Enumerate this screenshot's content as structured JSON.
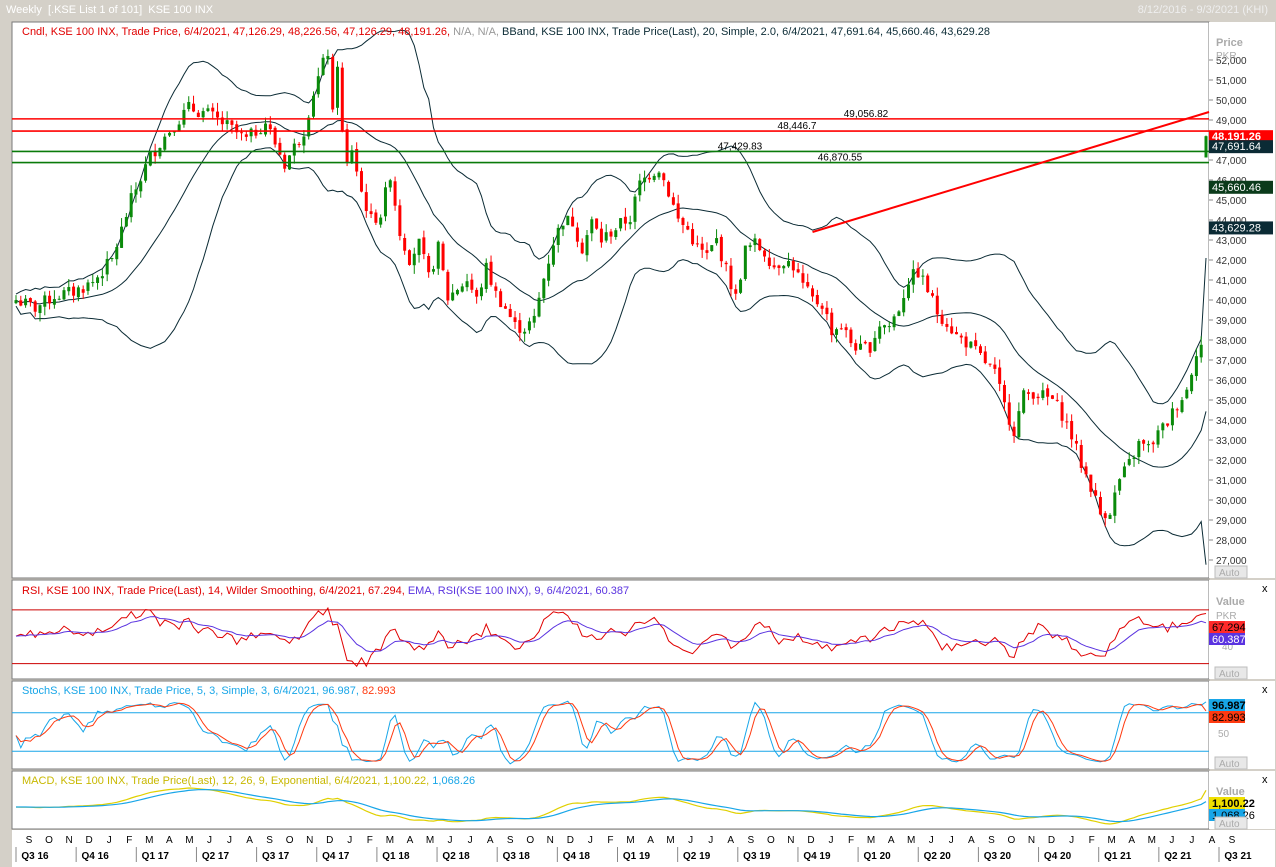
{
  "window": {
    "title": "Weekly  [.KSE List 1 of 101]  KSE 100 INX",
    "date_range": "8/12/2016 - 9/3/2021 (KHI)"
  },
  "colors": {
    "up": "#0a8a0a",
    "down": "#ff0000",
    "band": "#0b2b35",
    "rsi": "#e00000",
    "rsi_ema": "#5a33e0",
    "stoch_k": "#18a6e8",
    "stoch_d": "#ff3a10",
    "macd": "#e0d000",
    "macd_signal": "#18a6e8"
  },
  "main_panel": {
    "legend_candle": "Cndl, KSE 100 INX, Trade Price, 6/4/2021, 47,126.29, 48,226.56, 47,126.29, 48,191.26,",
    "legend_na": " N/A, N/A,",
    "legend_bband": " BBand, KSE 100 INX, Trade Price(Last),  20, Simple, 2.0, 6/4/2021, 47,691.64, 45,660.46, 43,629.28",
    "axis_title_1": "Price",
    "axis_title_2": "PKR",
    "auto_label": "Auto",
    "hline_labels": [
      "49,056.82",
      "48,446.7",
      "47,429.83",
      "46,870.55"
    ],
    "badges": [
      "48,191.26",
      "47,691.64",
      "45,660.46",
      "43,629.28"
    ]
  },
  "rsi_panel": {
    "legend_a": "RSI, KSE 100 INX, Trade Price(Last),  14, Wilder Smoothing, 6/4/2021, 67.294,",
    "legend_b": " EMA, RSI(KSE 100 INX),  9, 6/4/2021, 60.387",
    "axis_title_1": "Value",
    "axis_title_2": "PKR",
    "tick": "40",
    "badges": [
      "67.294",
      "60.387"
    ],
    "auto_label": "Auto",
    "close_label": "x"
  },
  "stoch_panel": {
    "legend_a": "StochS, KSE 100 INX, Trade Price,  5, 3, Simple, 3, 6/4/2021, 96.987,",
    "legend_b": " 82.993",
    "tick_50": "50",
    "tick_0": "0",
    "badges": [
      "96.987",
      "82.993"
    ],
    "auto_label": "Auto",
    "close_label": "x"
  },
  "macd_panel": {
    "legend_a": "MACD, KSE 100 INX, Trade Price(Last),  12, 26, 9, Exponential, 6/4/2021, 1,100.22,",
    "legend_b": " 1,068.26",
    "axis_title": "Value",
    "badges": [
      "1,100.22",
      "1,068.26"
    ],
    "auto_label": "Auto",
    "close_label": "x"
  },
  "chart_data": [
    {
      "type": "candlestick",
      "title": "KSE 100 INX Weekly",
      "ylabel": "Price PKR",
      "ylim": [
        26200,
        53800
      ],
      "y_ticks": [
        27000,
        28000,
        29000,
        30000,
        31000,
        32000,
        33000,
        34000,
        35000,
        36000,
        37000,
        38000,
        39000,
        40000,
        41000,
        42000,
        43000,
        44000,
        45000,
        46000,
        47000,
        48000,
        49000,
        50000,
        51000,
        52000
      ],
      "y_tick_labels": [
        "27,000",
        "28,000",
        "29,000",
        "30,000",
        "31,000",
        "32,000",
        "33,000",
        "34,000",
        "35,000",
        "36,000",
        "37,000",
        "38,000",
        "39,000",
        "40,000",
        "41,000",
        "42,000",
        "43,000",
        "44,000",
        "45,000",
        "46,000",
        "47,000",
        "48,000",
        "49,000",
        "50,000",
        "51,000",
        "52,000"
      ],
      "month_labels": [
        "S",
        "O",
        "N",
        "D",
        "J",
        "F",
        "M",
        "A",
        "M",
        "J",
        "J",
        "A",
        "S",
        "O",
        "N",
        "D",
        "J",
        "F",
        "M",
        "A",
        "M",
        "J",
        "J",
        "A",
        "S",
        "O",
        "N",
        "D",
        "J",
        "F",
        "M",
        "A",
        "M",
        "J",
        "J",
        "A",
        "S",
        "O",
        "N",
        "D",
        "J",
        "F",
        "M",
        "A",
        "M",
        "J",
        "J",
        "A",
        "S",
        "O",
        "N",
        "D",
        "J",
        "F",
        "M",
        "A",
        "M",
        "J",
        "J",
        "A",
        "S"
      ],
      "quarter_labels": [
        "Q3 16",
        "Q4 16",
        "Q1 17",
        "Q2 17",
        "Q3 17",
        "Q4 17",
        "Q1 18",
        "Q2 18",
        "Q3 18",
        "Q4 18",
        "Q1 19",
        "Q2 19",
        "Q3 19",
        "Q4 19",
        "Q1 20",
        "Q2 20",
        "Q3 20",
        "Q4 20",
        "Q1 21",
        "Q2 21",
        "Q3 21"
      ],
      "weeks": 248,
      "close_path": [
        [
          0,
          40000
        ],
        [
          4,
          39600
        ],
        [
          8,
          40200
        ],
        [
          12,
          40400
        ],
        [
          16,
          40900
        ],
        [
          20,
          42000
        ],
        [
          24,
          45000
        ],
        [
          28,
          47200
        ],
        [
          32,
          48500
        ],
        [
          36,
          49600
        ],
        [
          40,
          49300
        ],
        [
          44,
          48700
        ],
        [
          48,
          48000
        ],
        [
          52,
          48900
        ],
        [
          56,
          46800
        ],
        [
          60,
          48500
        ],
        [
          62,
          50400
        ],
        [
          64,
          51800
        ],
        [
          65,
          52400
        ],
        [
          66,
          49200
        ],
        [
          67,
          51900
        ],
        [
          68,
          48300
        ],
        [
          69,
          46700
        ],
        [
          70,
          47600
        ],
        [
          72,
          45400
        ],
        [
          74,
          44000
        ],
        [
          76,
          44300
        ],
        [
          78,
          46300
        ],
        [
          80,
          43400
        ],
        [
          82,
          42100
        ],
        [
          84,
          42800
        ],
        [
          86,
          41100
        ],
        [
          88,
          42600
        ],
        [
          90,
          40100
        ],
        [
          92,
          40600
        ],
        [
          94,
          41000
        ],
        [
          96,
          40000
        ],
        [
          98,
          41600
        ],
        [
          100,
          40300
        ],
        [
          102,
          39600
        ],
        [
          104,
          38700
        ],
        [
          106,
          38600
        ],
        [
          108,
          39000
        ],
        [
          110,
          41100
        ],
        [
          112,
          42900
        ],
        [
          114,
          44000
        ],
        [
          116,
          43900
        ],
        [
          118,
          42600
        ],
        [
          120,
          43900
        ],
        [
          122,
          43000
        ],
        [
          124,
          43400
        ],
        [
          126,
          43800
        ],
        [
          128,
          44100
        ],
        [
          130,
          45800
        ],
        [
          132,
          46300
        ],
        [
          134,
          46600
        ],
        [
          136,
          45400
        ],
        [
          138,
          44000
        ],
        [
          140,
          43500
        ],
        [
          142,
          42600
        ],
        [
          144,
          42200
        ],
        [
          146,
          43000
        ],
        [
          148,
          41500
        ],
        [
          150,
          40100
        ],
        [
          152,
          42500
        ],
        [
          154,
          42800
        ],
        [
          156,
          42400
        ],
        [
          158,
          41700
        ],
        [
          160,
          42000
        ],
        [
          162,
          41700
        ],
        [
          164,
          40700
        ],
        [
          166,
          40000
        ],
        [
          168,
          39800
        ],
        [
          170,
          38500
        ],
        [
          172,
          38700
        ],
        [
          174,
          37900
        ],
        [
          176,
          37500
        ],
        [
          178,
          37700
        ],
        [
          180,
          38800
        ],
        [
          182,
          38700
        ],
        [
          184,
          39600
        ],
        [
          186,
          41000
        ],
        [
          188,
          41400
        ],
        [
          190,
          40500
        ],
        [
          192,
          39400
        ],
        [
          194,
          38900
        ],
        [
          196,
          38200
        ],
        [
          198,
          37900
        ],
        [
          200,
          37400
        ],
        [
          202,
          36900
        ],
        [
          204,
          36300
        ],
        [
          206,
          34700
        ],
        [
          208,
          33500
        ],
        [
          210,
          35200
        ],
        [
          212,
          35400
        ],
        [
          214,
          35200
        ],
        [
          216,
          35000
        ],
        [
          218,
          34300
        ],
        [
          220,
          33200
        ],
        [
          222,
          31800
        ],
        [
          224,
          30700
        ],
        [
          226,
          29300
        ],
        [
          228,
          29500
        ],
        [
          230,
          31000
        ],
        [
          232,
          31800
        ],
        [
          234,
          32800
        ],
        [
          236,
          32600
        ],
        [
          238,
          33300
        ],
        [
          240,
          33900
        ],
        [
          242,
          34800
        ],
        [
          244,
          35500
        ],
        [
          246,
          37500
        ],
        [
          248,
          38000
        ]
      ],
      "note_x_units": "weekly bar index from Aug 2016"
    }
  ]
}
